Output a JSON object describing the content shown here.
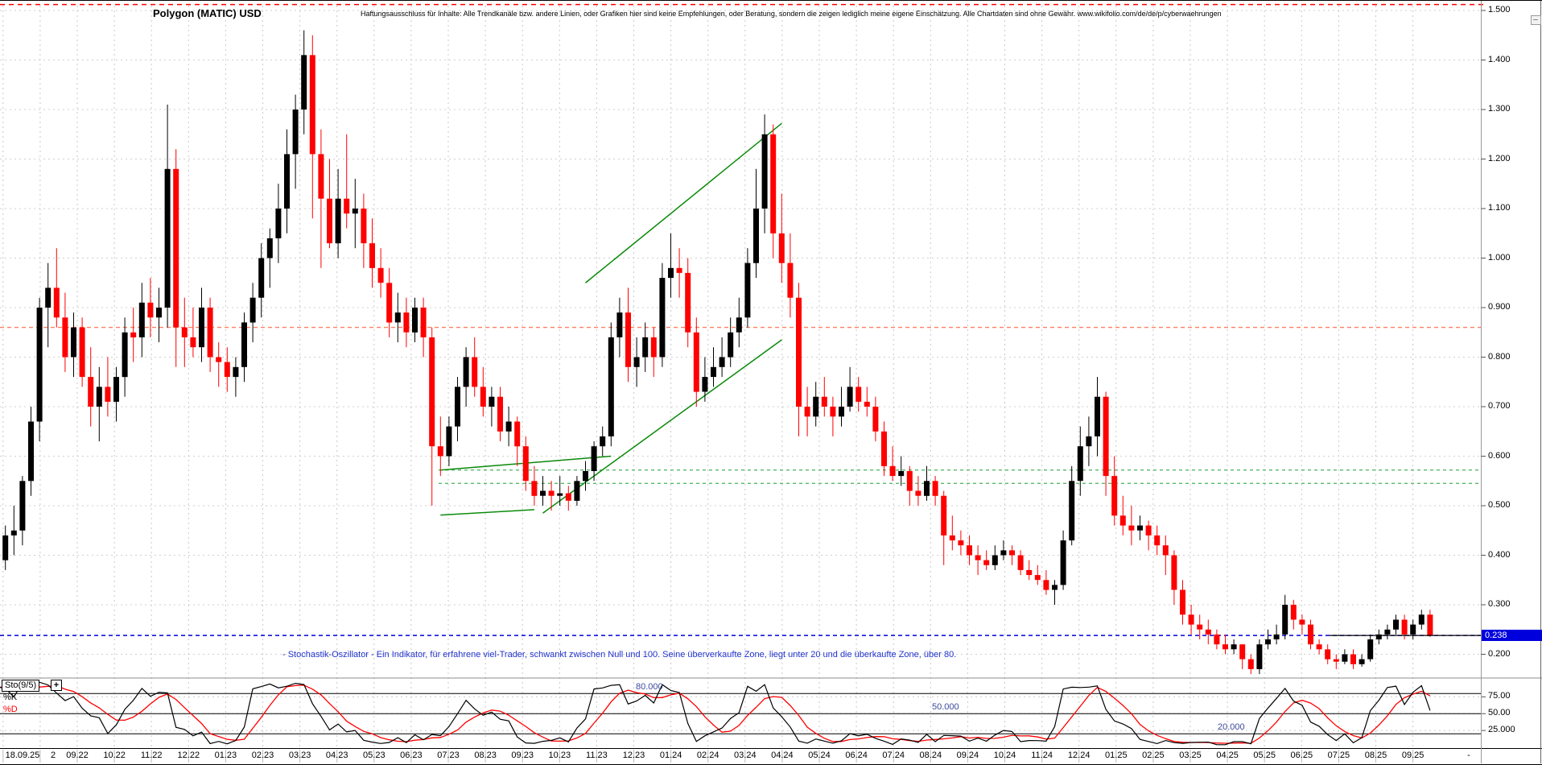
{
  "header": {
    "title": "Polygon (MATIC) USD",
    "disclaimer": "Haftungsausschluss für Inhalte: Alle Trendkanäle bzw. andere Linien, oder Grafiken hier sind keine Empfehlungen, oder Beratung, sondern die zeigen lediglich meine eigene Einschätzung. Alle Chartdaten sind ohne Gewähr.  www.wikifolio.com/de/de/p/cyberwaehrungen"
  },
  "note": {
    "text": "- Stochastik-Oszillator - Ein Indikator, für erfahrene viel-Trader, schwankt zwischen Null und 100. Seine überverkaufte Zone, liegt unter 20 und die überkaufte Zone, über 80."
  },
  "y_axis": {
    "labels": [
      "1.500",
      "1.400",
      "1.300",
      "1.200",
      "1.100",
      "1.000",
      "0.900",
      "0.800",
      "0.700",
      "0.600",
      "0.500",
      "0.400",
      "0.300",
      "0.200"
    ],
    "last_price_label": "0.238"
  },
  "x_axis": {
    "start_label": "18.09.25",
    "second_label": "2",
    "end_dash": "-",
    "month_labels": [
      "09.22",
      "10.22",
      "11.22",
      "12.22",
      "01.23",
      "02.23",
      "03.23",
      "04.23",
      "05.23",
      "06.23",
      "07.23",
      "08.23",
      "09.23",
      "10.23",
      "11.23",
      "12.23",
      "01.24",
      "02.24",
      "03.24",
      "04.24",
      "05.24",
      "06.24",
      "07.24",
      "08.24",
      "09.24",
      "10.24",
      "11.24",
      "12.24",
      "01.25",
      "02.25",
      "03.25",
      "04.25",
      "05.25",
      "06.25",
      "07.25",
      "08.25",
      "09.25"
    ]
  },
  "stoch_panel": {
    "indicator_label": "Sto(9/5)",
    "add_button": "+",
    "k_label": "%K",
    "d_label": "%D",
    "level_labels": [
      "80.000",
      "50.000",
      "20.000"
    ],
    "axis_labels": [
      "75.00",
      "50.00",
      "25.000"
    ]
  },
  "chart_data": {
    "type": "candlestick",
    "title": "Polygon (MATIC) USD",
    "timeframe": "weekly",
    "x_range": [
      "18.09.22",
      "18.09.25"
    ],
    "ylim": [
      0.15,
      1.52
    ],
    "y_ticks": [
      1.5,
      1.4,
      1.3,
      1.2,
      1.1,
      1.0,
      0.9,
      0.8,
      0.7,
      0.6,
      0.5,
      0.4,
      0.3,
      0.2
    ],
    "last_price": 0.238,
    "colors": {
      "up": "#000000",
      "down": "#ff0000",
      "grid": "#c9c9c9",
      "alert": "#ff0000",
      "resistance": "#ff8060",
      "support": "#57b96b",
      "last_price": "#0000dd",
      "trend": "#0a8a0a",
      "k_line": "#000000",
      "d_line": "#ff0000",
      "level_label": "#3b4a9b"
    },
    "weeks": [
      [
        0.31,
        0.4,
        0.3,
        0.39
      ],
      [
        0.39,
        0.46,
        0.37,
        0.44
      ],
      [
        0.44,
        0.5,
        0.4,
        0.45
      ],
      [
        0.45,
        0.56,
        0.42,
        0.55
      ],
      [
        0.55,
        0.7,
        0.52,
        0.67
      ],
      [
        0.67,
        0.92,
        0.63,
        0.9
      ],
      [
        0.9,
        0.99,
        0.82,
        0.94
      ],
      [
        0.94,
        1.02,
        0.86,
        0.88
      ],
      [
        0.88,
        0.93,
        0.77,
        0.8
      ],
      [
        0.8,
        0.89,
        0.76,
        0.86
      ],
      [
        0.86,
        0.88,
        0.74,
        0.76
      ],
      [
        0.76,
        0.82,
        0.66,
        0.7
      ],
      [
        0.7,
        0.78,
        0.63,
        0.74
      ],
      [
        0.74,
        0.8,
        0.68,
        0.71
      ],
      [
        0.71,
        0.78,
        0.67,
        0.76
      ],
      [
        0.76,
        0.88,
        0.72,
        0.85
      ],
      [
        0.85,
        0.9,
        0.79,
        0.84
      ],
      [
        0.84,
        0.95,
        0.8,
        0.91
      ],
      [
        0.91,
        0.96,
        0.84,
        0.88
      ],
      [
        0.88,
        0.94,
        0.83,
        0.9
      ],
      [
        0.9,
        1.31,
        0.86,
        1.18
      ],
      [
        1.18,
        1.22,
        0.78,
        0.86
      ],
      [
        0.86,
        0.92,
        0.78,
        0.84
      ],
      [
        0.84,
        0.9,
        0.8,
        0.82
      ],
      [
        0.82,
        0.94,
        0.79,
        0.9
      ],
      [
        0.9,
        0.92,
        0.77,
        0.8
      ],
      [
        0.8,
        0.83,
        0.74,
        0.79
      ],
      [
        0.79,
        0.82,
        0.73,
        0.76
      ],
      [
        0.76,
        0.8,
        0.72,
        0.78
      ],
      [
        0.78,
        0.89,
        0.75,
        0.87
      ],
      [
        0.87,
        0.95,
        0.83,
        0.92
      ],
      [
        0.92,
        1.03,
        0.88,
        1.0
      ],
      [
        1.0,
        1.06,
        0.94,
        1.04
      ],
      [
        1.04,
        1.15,
        0.99,
        1.1
      ],
      [
        1.1,
        1.26,
        1.05,
        1.21
      ],
      [
        1.21,
        1.33,
        1.14,
        1.3
      ],
      [
        1.3,
        1.46,
        1.25,
        1.41
      ],
      [
        1.41,
        1.45,
        1.08,
        1.21
      ],
      [
        1.21,
        1.26,
        0.98,
        1.12
      ],
      [
        1.12,
        1.2,
        1.02,
        1.03
      ],
      [
        1.03,
        1.18,
        1.0,
        1.12
      ],
      [
        1.12,
        1.25,
        1.06,
        1.09
      ],
      [
        1.09,
        1.16,
        1.02,
        1.1
      ],
      [
        1.1,
        1.13,
        0.98,
        1.03
      ],
      [
        1.03,
        1.08,
        0.94,
        0.98
      ],
      [
        0.98,
        1.02,
        0.92,
        0.95
      ],
      [
        0.95,
        0.98,
        0.84,
        0.87
      ],
      [
        0.87,
        0.93,
        0.83,
        0.89
      ],
      [
        0.89,
        0.92,
        0.82,
        0.85
      ],
      [
        0.85,
        0.92,
        0.83,
        0.9
      ],
      [
        0.9,
        0.92,
        0.8,
        0.84
      ],
      [
        0.84,
        0.86,
        0.5,
        0.62
      ],
      [
        0.62,
        0.68,
        0.56,
        0.6
      ],
      [
        0.6,
        0.68,
        0.58,
        0.66
      ],
      [
        0.66,
        0.76,
        0.63,
        0.74
      ],
      [
        0.74,
        0.82,
        0.7,
        0.8
      ],
      [
        0.8,
        0.84,
        0.72,
        0.74
      ],
      [
        0.74,
        0.78,
        0.68,
        0.7
      ],
      [
        0.7,
        0.74,
        0.66,
        0.72
      ],
      [
        0.72,
        0.74,
        0.63,
        0.65
      ],
      [
        0.65,
        0.7,
        0.62,
        0.67
      ],
      [
        0.67,
        0.68,
        0.58,
        0.62
      ],
      [
        0.62,
        0.64,
        0.53,
        0.55
      ],
      [
        0.55,
        0.58,
        0.5,
        0.52
      ],
      [
        0.52,
        0.56,
        0.5,
        0.53
      ],
      [
        0.53,
        0.55,
        0.49,
        0.52
      ],
      [
        0.52,
        0.56,
        0.5,
        0.525
      ],
      [
        0.525,
        0.54,
        0.49,
        0.51
      ],
      [
        0.51,
        0.56,
        0.5,
        0.55
      ],
      [
        0.55,
        0.59,
        0.53,
        0.57
      ],
      [
        0.57,
        0.63,
        0.55,
        0.62
      ],
      [
        0.62,
        0.66,
        0.6,
        0.64
      ],
      [
        0.64,
        0.87,
        0.62,
        0.84
      ],
      [
        0.84,
        0.92,
        0.8,
        0.89
      ],
      [
        0.89,
        0.94,
        0.75,
        0.78
      ],
      [
        0.78,
        0.84,
        0.74,
        0.8
      ],
      [
        0.8,
        0.87,
        0.77,
        0.84
      ],
      [
        0.84,
        0.86,
        0.76,
        0.8
      ],
      [
        0.8,
        0.99,
        0.78,
        0.96
      ],
      [
        0.96,
        1.05,
        0.92,
        0.98
      ],
      [
        0.98,
        1.02,
        0.92,
        0.97
      ],
      [
        0.97,
        1.0,
        0.82,
        0.85
      ],
      [
        0.85,
        0.88,
        0.7,
        0.73
      ],
      [
        0.73,
        0.8,
        0.71,
        0.76
      ],
      [
        0.76,
        0.82,
        0.74,
        0.78
      ],
      [
        0.78,
        0.84,
        0.76,
        0.8
      ],
      [
        0.8,
        0.88,
        0.78,
        0.85
      ],
      [
        0.85,
        0.92,
        0.82,
        0.88
      ],
      [
        0.88,
        1.02,
        0.86,
        0.99
      ],
      [
        0.99,
        1.18,
        0.96,
        1.1
      ],
      [
        1.1,
        1.29,
        1.05,
        1.25
      ],
      [
        1.25,
        1.27,
        1.0,
        1.05
      ],
      [
        1.05,
        1.13,
        0.95,
        0.99
      ],
      [
        0.99,
        1.05,
        0.88,
        0.92
      ],
      [
        0.92,
        0.95,
        0.64,
        0.7
      ],
      [
        0.7,
        0.74,
        0.64,
        0.68
      ],
      [
        0.68,
        0.75,
        0.66,
        0.72
      ],
      [
        0.72,
        0.76,
        0.68,
        0.7
      ],
      [
        0.7,
        0.72,
        0.64,
        0.68
      ],
      [
        0.68,
        0.74,
        0.66,
        0.7
      ],
      [
        0.7,
        0.78,
        0.69,
        0.74
      ],
      [
        0.74,
        0.76,
        0.69,
        0.71
      ],
      [
        0.71,
        0.74,
        0.68,
        0.7
      ],
      [
        0.7,
        0.72,
        0.63,
        0.65
      ],
      [
        0.65,
        0.67,
        0.56,
        0.58
      ],
      [
        0.58,
        0.62,
        0.55,
        0.56
      ],
      [
        0.56,
        0.6,
        0.54,
        0.57
      ],
      [
        0.57,
        0.58,
        0.5,
        0.53
      ],
      [
        0.53,
        0.56,
        0.5,
        0.52
      ],
      [
        0.52,
        0.58,
        0.51,
        0.55
      ],
      [
        0.55,
        0.56,
        0.5,
        0.52
      ],
      [
        0.52,
        0.53,
        0.38,
        0.44
      ],
      [
        0.44,
        0.48,
        0.41,
        0.43
      ],
      [
        0.43,
        0.45,
        0.4,
        0.42
      ],
      [
        0.42,
        0.44,
        0.38,
        0.4
      ],
      [
        0.4,
        0.42,
        0.36,
        0.39
      ],
      [
        0.39,
        0.41,
        0.37,
        0.38
      ],
      [
        0.38,
        0.42,
        0.37,
        0.4
      ],
      [
        0.4,
        0.43,
        0.39,
        0.41
      ],
      [
        0.41,
        0.42,
        0.38,
        0.4
      ],
      [
        0.4,
        0.41,
        0.36,
        0.37
      ],
      [
        0.37,
        0.39,
        0.35,
        0.36
      ],
      [
        0.36,
        0.38,
        0.34,
        0.35
      ],
      [
        0.35,
        0.37,
        0.32,
        0.33
      ],
      [
        0.33,
        0.35,
        0.3,
        0.34
      ],
      [
        0.34,
        0.45,
        0.33,
        0.43
      ],
      [
        0.43,
        0.58,
        0.42,
        0.55
      ],
      [
        0.55,
        0.66,
        0.52,
        0.62
      ],
      [
        0.62,
        0.68,
        0.58,
        0.64
      ],
      [
        0.64,
        0.76,
        0.6,
        0.72
      ],
      [
        0.72,
        0.73,
        0.52,
        0.56
      ],
      [
        0.56,
        0.6,
        0.46,
        0.48
      ],
      [
        0.48,
        0.52,
        0.44,
        0.46
      ],
      [
        0.46,
        0.5,
        0.42,
        0.45
      ],
      [
        0.45,
        0.48,
        0.43,
        0.46
      ],
      [
        0.46,
        0.47,
        0.41,
        0.44
      ],
      [
        0.44,
        0.46,
        0.4,
        0.42
      ],
      [
        0.42,
        0.44,
        0.36,
        0.4
      ],
      [
        0.4,
        0.41,
        0.3,
        0.33
      ],
      [
        0.33,
        0.35,
        0.26,
        0.28
      ],
      [
        0.28,
        0.3,
        0.24,
        0.26
      ],
      [
        0.26,
        0.28,
        0.23,
        0.25
      ],
      [
        0.25,
        0.27,
        0.22,
        0.24
      ],
      [
        0.24,
        0.25,
        0.21,
        0.22
      ],
      [
        0.22,
        0.24,
        0.2,
        0.21
      ],
      [
        0.21,
        0.23,
        0.2,
        0.22
      ],
      [
        0.22,
        0.22,
        0.17,
        0.19
      ],
      [
        0.19,
        0.2,
        0.16,
        0.17
      ],
      [
        0.17,
        0.23,
        0.16,
        0.22
      ],
      [
        0.22,
        0.25,
        0.21,
        0.23
      ],
      [
        0.23,
        0.26,
        0.22,
        0.24
      ],
      [
        0.24,
        0.32,
        0.23,
        0.3
      ],
      [
        0.3,
        0.31,
        0.25,
        0.27
      ],
      [
        0.27,
        0.28,
        0.24,
        0.26
      ],
      [
        0.26,
        0.27,
        0.21,
        0.22
      ],
      [
        0.22,
        0.23,
        0.2,
        0.21
      ],
      [
        0.21,
        0.22,
        0.18,
        0.19
      ],
      [
        0.19,
        0.2,
        0.17,
        0.185
      ],
      [
        0.185,
        0.21,
        0.18,
        0.2
      ],
      [
        0.2,
        0.21,
        0.17,
        0.18
      ],
      [
        0.18,
        0.2,
        0.175,
        0.19
      ],
      [
        0.19,
        0.24,
        0.185,
        0.23
      ],
      [
        0.23,
        0.25,
        0.22,
        0.24
      ],
      [
        0.24,
        0.26,
        0.23,
        0.25
      ],
      [
        0.25,
        0.28,
        0.24,
        0.27
      ],
      [
        0.27,
        0.28,
        0.23,
        0.24
      ],
      [
        0.24,
        0.27,
        0.23,
        0.26
      ],
      [
        0.26,
        0.29,
        0.25,
        0.28
      ],
      [
        0.28,
        0.29,
        0.235,
        0.238
      ]
    ],
    "hlines": [
      {
        "name": "alert-line",
        "price": 1.512,
        "color_key": "alert",
        "dash": "6,5",
        "x_from": 0,
        "x_to": 1845
      },
      {
        "name": "resistance-line",
        "price": 0.86,
        "color_key": "resistance",
        "dash": "5,4",
        "x_from": 0,
        "x_to": 1840
      },
      {
        "name": "support-line-1",
        "price": 0.572,
        "color_key": "support",
        "dash": "4,4",
        "x_from": 545,
        "x_to": 1840
      },
      {
        "name": "support-line-2",
        "price": 0.545,
        "color_key": "support",
        "dash": "4,4",
        "x_from": 545,
        "x_to": 1840
      },
      {
        "name": "last-price-line",
        "price": 0.238,
        "color_key": "last_price",
        "dash": "5,4",
        "x_from": 0,
        "x_to": 1840
      }
    ],
    "trend_lines": [
      {
        "name": "trend-channel-upper",
        "w1": 69,
        "p1": 0.95,
        "w2": 92,
        "p2": 1.272
      },
      {
        "name": "trend-channel-lower",
        "w1": 64,
        "p1": 0.485,
        "w2": 92,
        "p2": 0.835
      },
      {
        "name": "base-line-upper",
        "w1": 52,
        "p1": 0.572,
        "w2": 72,
        "p2": 0.6
      },
      {
        "name": "base-line-lower",
        "w1": 52,
        "p1": 0.481,
        "w2": 63,
        "p2": 0.492
      }
    ],
    "indicator": {
      "name": "Sto(9/5)",
      "k_period": 9,
      "d_period": 5,
      "levels": [
        80,
        50,
        20
      ],
      "axis_levels": [
        75,
        50,
        25
      ]
    }
  }
}
